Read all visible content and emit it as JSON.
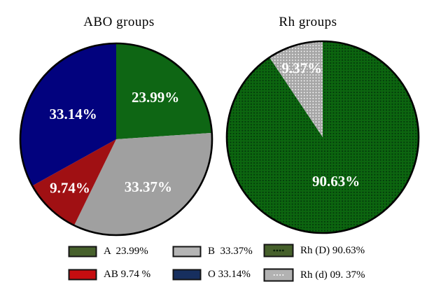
{
  "figure": {
    "background": "#ffffff",
    "slice_label_color": "#ffffff"
  },
  "chart_data": [
    {
      "type": "pie",
      "title": "ABO groups",
      "direction": "clockwise",
      "start_angle_deg": 0,
      "legend_position": "bottom",
      "units": "percent",
      "slices": [
        {
          "label": "A",
          "value": 23.99,
          "display": "23.99%",
          "color": "#0e6614",
          "pattern": "none",
          "label_r": 0.6
        },
        {
          "label": "B",
          "value": 33.37,
          "display": "33.37%",
          "color": "#a0a0a0",
          "pattern": "none",
          "label_r": 0.6
        },
        {
          "label": "AB",
          "value": 9.74,
          "display": "9.74%",
          "color": "#a01013",
          "pattern": "none",
          "label_r": 0.7
        },
        {
          "label": "O",
          "value": 33.14,
          "display": "33.14%",
          "color": "#02027e",
          "pattern": "none",
          "label_r": 0.52
        }
      ]
    },
    {
      "type": "pie",
      "title": "Rh groups",
      "direction": "clockwise",
      "start_angle_deg": 0,
      "legend_position": "bottom",
      "units": "percent",
      "slices": [
        {
          "label": "Rh (D)",
          "value": 90.63,
          "display": "90.63%",
          "color": "#0c660f",
          "pattern": "dark-dots",
          "label_r": 0.48
        },
        {
          "label": "Rh (d)",
          "value": 9.37,
          "display": "9.37%",
          "color": "#a6a6a6",
          "pattern": "white-dots",
          "label_r": 0.75
        }
      ]
    }
  ],
  "legend": {
    "items": [
      {
        "label": "A  23.99%",
        "color": "#47612c",
        "pattern": "none"
      },
      {
        "label": "AB 9.74 %",
        "color": "#c60d10",
        "pattern": "none"
      },
      {
        "label": "B  33.37%",
        "color": "#b5b5b5",
        "pattern": "none"
      },
      {
        "label": "O 33.14%",
        "color": "#172f5f",
        "pattern": "none"
      },
      {
        "label": "Rh (D) 90.63%",
        "color": "#46602b",
        "pattern": "dark-dots"
      },
      {
        "label": "Rh (d) 09. 37%",
        "color": "#b2b2b2",
        "pattern": "white-dots"
      }
    ]
  }
}
